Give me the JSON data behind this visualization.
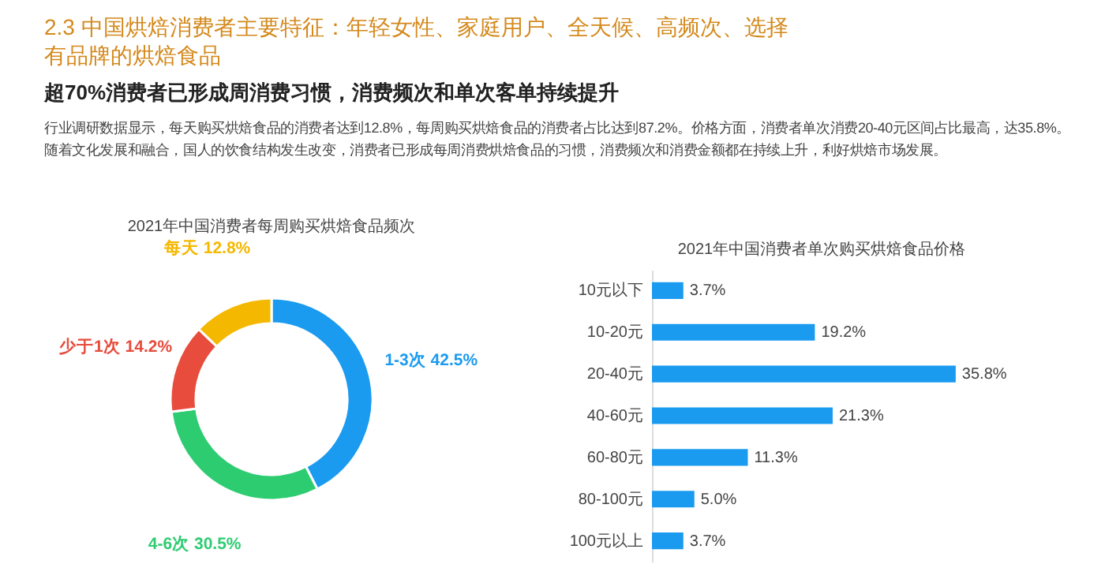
{
  "chart_data": [
    {
      "type": "other",
      "title": "2.3 中国烘焙消费者主要特征：年轻女性、家庭用户、全天候、高频次、选择有品牌的烘焙食品",
      "subtitle": "超70%消费者已形成周消费习惯，消费频次和单次客单持续提升",
      "annotations": [
        "行业调研数据显示，每天购买烘焙食品的消费者达到12.8%，每周购买烘焙食品的消费者占比达到87.2%。价格方面，消费者单次消费20-40元区间占比最高，达35.8%。随着文化发展和融合，国人的饮食结构发生改变，消费者已形成每周消费烘焙食品的习惯，消费频次和消费金额都在持续上升，利好烘焙市场发展。"
      ]
    },
    {
      "type": "donut",
      "title": "2021年中国消费者每周购买烘焙食品频次",
      "categories": [
        "1-3次",
        "4-6次",
        "少于1次",
        "每天"
      ],
      "values": [
        42.5,
        30.5,
        14.2,
        12.8
      ],
      "colors": [
        "#1a9bf0",
        "#2ecc71",
        "#e74c3c",
        "#f5b800"
      ],
      "value_labels": [
        "42.5%",
        "30.5%",
        "14.2%",
        "12.8%"
      ]
    },
    {
      "type": "bar",
      "orientation": "horizontal",
      "title": "2021年中国消费者单次购买烘焙食品价格",
      "categories": [
        "10元以下",
        "10-20元",
        "20-40元",
        "40-60元",
        "60-80元",
        "80-100元",
        "100元以上"
      ],
      "values": [
        3.7,
        19.2,
        35.8,
        21.3,
        11.3,
        5.0,
        3.7
      ],
      "color": "#1a9bf0",
      "value_labels": [
        "3.7%",
        "19.2%",
        "35.8%",
        "21.3%",
        "11.3%",
        "5.0%",
        "3.7%"
      ]
    }
  ]
}
